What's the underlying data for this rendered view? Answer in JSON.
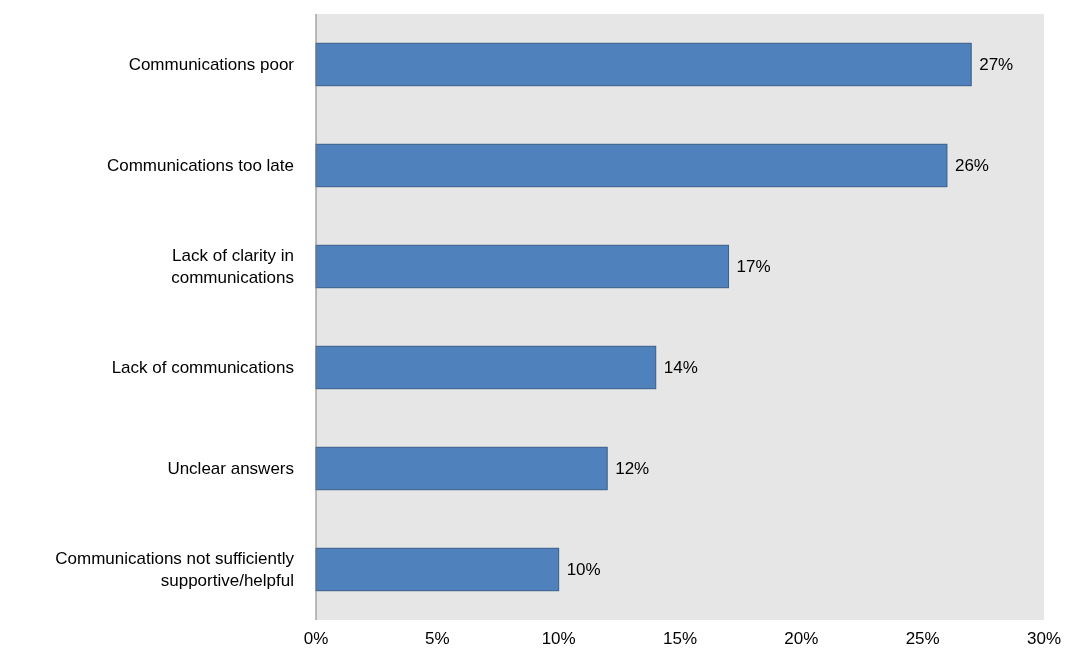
{
  "chart_data": {
    "type": "bar",
    "orientation": "horizontal",
    "categories": [
      "Communications poor",
      "Communications too late",
      "Lack of clarity in communications",
      "Lack of communications",
      "Unclear answers",
      "Communications not sufficiently supportive/helpful"
    ],
    "values": [
      27,
      26,
      17,
      14,
      12,
      10
    ],
    "value_labels": [
      "27%",
      "26%",
      "17%",
      "14%",
      "12%",
      "10%"
    ],
    "color": "#4f81bd",
    "xlim": [
      0,
      30
    ],
    "xticks": [
      {
        "value": 0,
        "label": "0%"
      },
      {
        "value": 5,
        "label": "5%"
      },
      {
        "value": 10,
        "label": "10%"
      },
      {
        "value": 15,
        "label": "15%"
      },
      {
        "value": 20,
        "label": "20%"
      },
      {
        "value": 25,
        "label": "25%"
      },
      {
        "value": 30,
        "label": "30%"
      }
    ],
    "grid": false
  }
}
